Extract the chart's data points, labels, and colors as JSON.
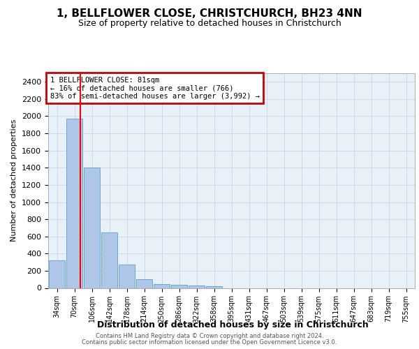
{
  "title": "1, BELLFLOWER CLOSE, CHRISTCHURCH, BH23 4NN",
  "subtitle": "Size of property relative to detached houses in Christchurch",
  "xlabel": "Distribution of detached houses by size in Christchurch",
  "ylabel": "Number of detached properties",
  "footer_line1": "Contains HM Land Registry data © Crown copyright and database right 2024.",
  "footer_line2": "Contains public sector information licensed under the Open Government Licence v3.0.",
  "bar_labels": [
    "34sqm",
    "70sqm",
    "106sqm",
    "142sqm",
    "178sqm",
    "214sqm",
    "250sqm",
    "286sqm",
    "322sqm",
    "358sqm",
    "395sqm",
    "431sqm",
    "467sqm",
    "503sqm",
    "539sqm",
    "575sqm",
    "611sqm",
    "647sqm",
    "683sqm",
    "719sqm",
    "755sqm"
  ],
  "bar_values": [
    320,
    1970,
    1400,
    650,
    275,
    100,
    45,
    40,
    25,
    20,
    0,
    0,
    0,
    0,
    0,
    0,
    0,
    0,
    0,
    0,
    0
  ],
  "bar_color": "#aec6e8",
  "bar_edge_color": "#5a9fd4",
  "red_line_x": 1.33,
  "annotation_text": "1 BELLFLOWER CLOSE: 81sqm\n← 16% of detached houses are smaller (766)\n83% of semi-detached houses are larger (3,992) →",
  "annotation_box_color": "#cc0000",
  "ylim": [
    0,
    2500
  ],
  "yticks": [
    0,
    200,
    400,
    600,
    800,
    1000,
    1200,
    1400,
    1600,
    1800,
    2000,
    2200,
    2400
  ],
  "grid_color": "#c8d4e8",
  "bg_color": "#e8f0f8",
  "title_fontsize": 11,
  "subtitle_fontsize": 9
}
